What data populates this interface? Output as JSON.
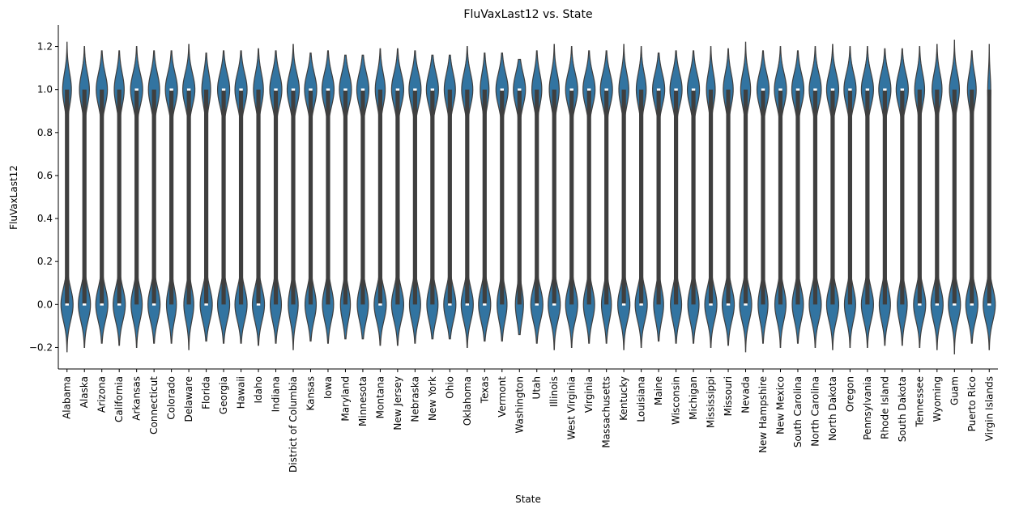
{
  "chart_data": {
    "type": "violin",
    "title": "FluVaxLast12 vs. State",
    "xlabel": "State",
    "ylabel": "FluVaxLast12",
    "ylim": [
      -0.3,
      1.3
    ],
    "yticks": [
      "−0.2",
      "0.0",
      "0.2",
      "0.4",
      "0.6",
      "0.8",
      "1.0",
      "1.2"
    ],
    "ytick_values": [
      -0.2,
      0.0,
      0.2,
      0.4,
      0.6,
      0.8,
      1.0,
      1.2
    ],
    "colors": {
      "violin": "#3274a1",
      "edge": "#3f3f3f",
      "box": "#3f3f3f",
      "median": "#ffffff"
    },
    "categories": [
      "Alabama",
      "Alaska",
      "Arizona",
      "California",
      "Arkansas",
      "Connecticut",
      "Colorado",
      "Delaware",
      "Florida",
      "Georgia",
      "Hawaii",
      "Idaho",
      "Indiana",
      "District of Columbia",
      "Kansas",
      "Iowa",
      "Maryland",
      "Minnesota",
      "Montana",
      "New Jersey",
      "Nebraska",
      "New York",
      "Ohio",
      "Oklahoma",
      "Texas",
      "Vermont",
      "Washington",
      "Utah",
      "Illinois",
      "West Virginia",
      "Virginia",
      "Massachusetts",
      "Kentucky",
      "Louisiana",
      "Maine",
      "Wisconsin",
      "Michigan",
      "Mississippi",
      "Missouri",
      "Nevada",
      "New Hampshire",
      "New Mexico",
      "South Carolina",
      "North Carolina",
      "North Dakota",
      "Oregon",
      "Pennsylvania",
      "Rhode Island",
      "South Dakota",
      "Tennessee",
      "Wyoming",
      "Guam",
      "Puerto Rico",
      "Virgin Islands"
    ],
    "medians": [
      0,
      0,
      0,
      0,
      1,
      0,
      1,
      1,
      0,
      1,
      1,
      0,
      1,
      1,
      1,
      1,
      1,
      1,
      0,
      1,
      1,
      1,
      0,
      0,
      0,
      1,
      1,
      0,
      0,
      1,
      1,
      1,
      0,
      0,
      1,
      1,
      1,
      0,
      0,
      0,
      1,
      1,
      1,
      1,
      1,
      1,
      1,
      1,
      1,
      0,
      0,
      0,
      0,
      0
    ],
    "share_at_1": [
      0.42,
      0.45,
      0.48,
      0.45,
      0.52,
      0.48,
      0.55,
      0.55,
      0.42,
      0.5,
      0.5,
      0.45,
      0.52,
      0.55,
      0.52,
      0.52,
      0.55,
      0.52,
      0.45,
      0.5,
      0.52,
      0.52,
      0.48,
      0.48,
      0.42,
      0.55,
      0.6,
      0.45,
      0.45,
      0.5,
      0.52,
      0.55,
      0.45,
      0.45,
      0.55,
      0.52,
      0.52,
      0.42,
      0.45,
      0.45,
      0.55,
      0.52,
      0.52,
      0.5,
      0.5,
      0.52,
      0.5,
      0.52,
      0.55,
      0.45,
      0.45,
      0.45,
      0.42,
      0.2
    ],
    "data_range": [
      [
        -0.22,
        1.22
      ],
      [
        -0.2,
        1.2
      ],
      [
        -0.18,
        1.18
      ],
      [
        -0.19,
        1.18
      ],
      [
        -0.2,
        1.2
      ],
      [
        -0.18,
        1.18
      ],
      [
        -0.18,
        1.18
      ],
      [
        -0.21,
        1.21
      ],
      [
        -0.17,
        1.17
      ],
      [
        -0.18,
        1.18
      ],
      [
        -0.18,
        1.18
      ],
      [
        -0.19,
        1.19
      ],
      [
        -0.18,
        1.18
      ],
      [
        -0.21,
        1.21
      ],
      [
        -0.17,
        1.17
      ],
      [
        -0.18,
        1.18
      ],
      [
        -0.16,
        1.16
      ],
      [
        -0.16,
        1.16
      ],
      [
        -0.19,
        1.19
      ],
      [
        -0.19,
        1.19
      ],
      [
        -0.18,
        1.18
      ],
      [
        -0.16,
        1.16
      ],
      [
        -0.16,
        1.16
      ],
      [
        -0.2,
        1.2
      ],
      [
        -0.17,
        1.17
      ],
      [
        -0.17,
        1.17
      ],
      [
        -0.14,
        1.14
      ],
      [
        -0.18,
        1.18
      ],
      [
        -0.21,
        1.21
      ],
      [
        -0.2,
        1.2
      ],
      [
        -0.18,
        1.18
      ],
      [
        -0.18,
        1.18
      ],
      [
        -0.21,
        1.21
      ],
      [
        -0.2,
        1.2
      ],
      [
        -0.17,
        1.17
      ],
      [
        -0.18,
        1.18
      ],
      [
        -0.18,
        1.18
      ],
      [
        -0.2,
        1.2
      ],
      [
        -0.19,
        1.19
      ],
      [
        -0.22,
        1.22
      ],
      [
        -0.18,
        1.18
      ],
      [
        -0.2,
        1.2
      ],
      [
        -0.18,
        1.18
      ],
      [
        -0.2,
        1.2
      ],
      [
        -0.21,
        1.21
      ],
      [
        -0.2,
        1.2
      ],
      [
        -0.2,
        1.2
      ],
      [
        -0.19,
        1.19
      ],
      [
        -0.19,
        1.19
      ],
      [
        -0.2,
        1.2
      ],
      [
        -0.21,
        1.21
      ],
      [
        -0.23,
        1.23
      ],
      [
        -0.18,
        1.18
      ],
      [
        -0.21,
        1.21
      ]
    ]
  }
}
